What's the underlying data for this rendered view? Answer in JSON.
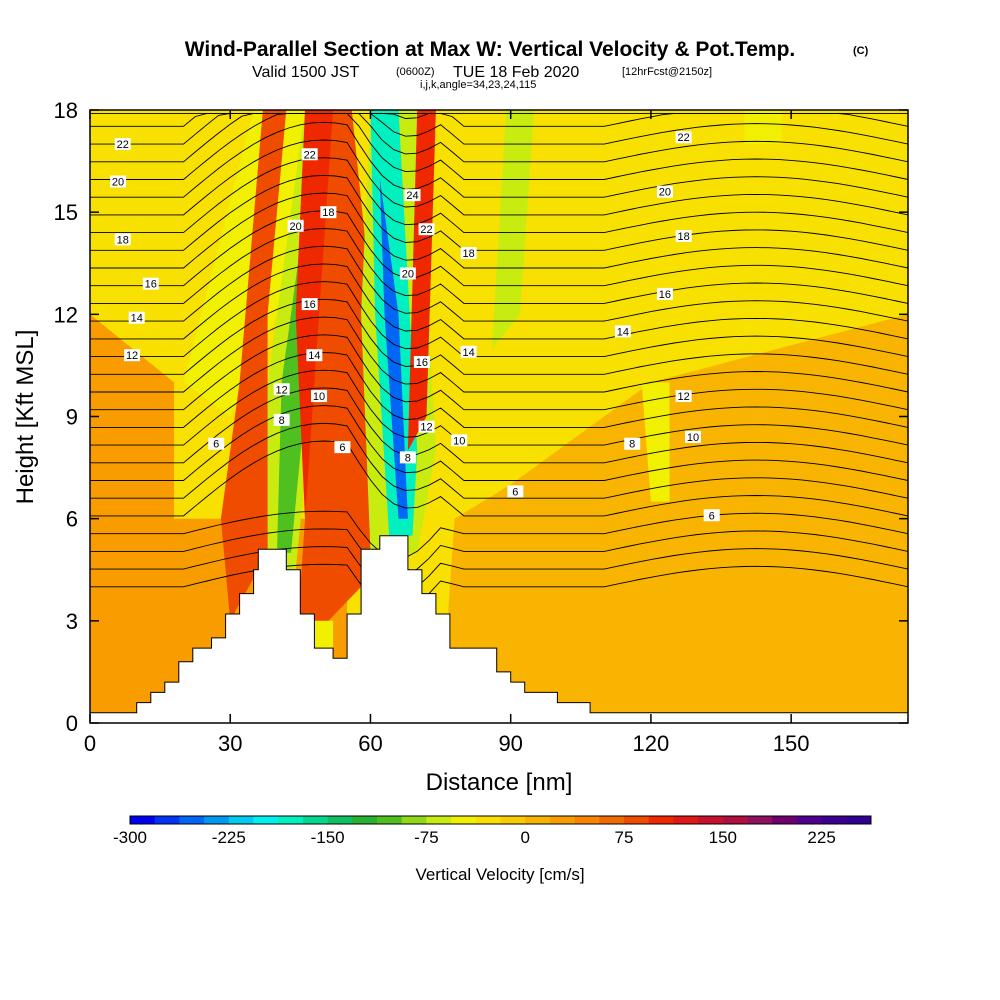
{
  "header": {
    "title_main": "Wind-Parallel Section at Max W: Vertical Velocity & Pot.Temp.",
    "title_mark": "(C)",
    "subtitle_a": "Valid 1500 JST",
    "subtitle_b": "(0600Z)",
    "subtitle_c": "TUE 18 Feb 2020",
    "subtitle_d": "[12hrFcst@2150z]",
    "params": "i,j,k,angle=34,23,24,115"
  },
  "chart_data": {
    "type": "heatmap",
    "title": "Wind-Parallel Section at Max W: Vertical Velocity & Pot.Temp.",
    "xlabel": "Distance [nm]",
    "ylabel": "Height [Kft MSL]",
    "xlim": [
      0,
      175
    ],
    "ylim": [
      0,
      18
    ],
    "x_ticks": [
      0,
      30,
      60,
      90,
      120,
      150
    ],
    "y_ticks": [
      0,
      3,
      6,
      9,
      12,
      15,
      18
    ],
    "colorbar": {
      "label": "Vertical Velocity [cm/s]",
      "ticks": [
        -300,
        -225,
        -150,
        -75,
        0,
        75,
        150,
        225
      ],
      "min": -300,
      "max": 262.5,
      "step": 18.75,
      "colors": [
        "#0000f0",
        "#0033f5",
        "#0066f5",
        "#0099f0",
        "#00ccf0",
        "#00f0f0",
        "#00f0c0",
        "#00d890",
        "#10c060",
        "#28b030",
        "#50c020",
        "#90d818",
        "#c8ec10",
        "#f0f000",
        "#f8e000",
        "#f8cc00",
        "#f8b400",
        "#f89c00",
        "#f88400",
        "#f06c00",
        "#f04c00",
        "#f02800",
        "#e01818",
        "#c81030",
        "#b01040",
        "#901060",
        "#700070",
        "#500090",
        "#3b0090",
        "#300090"
      ]
    },
    "terrain": [
      [
        0,
        0.3
      ],
      [
        10,
        0.3
      ],
      [
        10,
        0.6
      ],
      [
        13,
        0.6
      ],
      [
        13,
        0.9
      ],
      [
        16,
        0.9
      ],
      [
        16,
        1.2
      ],
      [
        19,
        1.2
      ],
      [
        19,
        1.8
      ],
      [
        22,
        1.8
      ],
      [
        22,
        2.2
      ],
      [
        26,
        2.2
      ],
      [
        26,
        2.5
      ],
      [
        29,
        2.5
      ],
      [
        29,
        3.2
      ],
      [
        32,
        3.2
      ],
      [
        32,
        3.8
      ],
      [
        35,
        3.8
      ],
      [
        35,
        4.5
      ],
      [
        36,
        4.5
      ],
      [
        36,
        5.1
      ],
      [
        42,
        5.1
      ],
      [
        42,
        4.5
      ],
      [
        45,
        4.5
      ],
      [
        45,
        3.2
      ],
      [
        48,
        3.2
      ],
      [
        48,
        2.2
      ],
      [
        52,
        2.2
      ],
      [
        52,
        1.9
      ],
      [
        55,
        1.9
      ],
      [
        55,
        3.2
      ],
      [
        58,
        3.2
      ],
      [
        58,
        5.1
      ],
      [
        62,
        5.1
      ],
      [
        62,
        5.5
      ],
      [
        68,
        5.5
      ],
      [
        68,
        4.5
      ],
      [
        71,
        4.5
      ],
      [
        71,
        3.8
      ],
      [
        74,
        3.8
      ],
      [
        74,
        3.2
      ],
      [
        77,
        3.2
      ],
      [
        77,
        2.2
      ],
      [
        87,
        2.2
      ],
      [
        87,
        1.5
      ],
      [
        90,
        1.5
      ],
      [
        90,
        1.2
      ],
      [
        93,
        1.2
      ],
      [
        93,
        0.9
      ],
      [
        100,
        0.9
      ],
      [
        100,
        0.6
      ],
      [
        107,
        0.6
      ],
      [
        107,
        0.3
      ],
      [
        175,
        0.3
      ]
    ],
    "isotherms": [
      {
        "theta": "6",
        "label_at": [
          [
            27,
            8.2
          ],
          [
            54,
            8.1
          ],
          [
            91,
            6.8
          ],
          [
            133,
            6.1
          ]
        ]
      },
      {
        "theta": "8",
        "label_at": [
          [
            41,
            8.9
          ],
          [
            68,
            7.8
          ],
          [
            116,
            8.2
          ]
        ]
      },
      {
        "theta": "10",
        "label_at": [
          [
            49,
            9.6
          ],
          [
            79,
            8.3
          ],
          [
            129,
            8.4
          ]
        ]
      },
      {
        "theta": "12",
        "label_at": [
          [
            9,
            10.8
          ],
          [
            41,
            9.8
          ],
          [
            72,
            8.7
          ],
          [
            127,
            9.6
          ]
        ]
      },
      {
        "theta": "14",
        "label_at": [
          [
            10,
            11.9
          ],
          [
            48,
            10.8
          ],
          [
            81,
            10.9
          ],
          [
            114,
            11.5
          ]
        ]
      },
      {
        "theta": "16",
        "label_at": [
          [
            13,
            12.9
          ],
          [
            47,
            12.3
          ],
          [
            71,
            10.6
          ],
          [
            123,
            12.6
          ]
        ]
      },
      {
        "theta": "18",
        "label_at": [
          [
            7,
            14.2
          ],
          [
            51,
            15.0
          ],
          [
            81,
            13.8
          ],
          [
            127,
            14.3
          ]
        ]
      },
      {
        "theta": "20",
        "label_at": [
          [
            6,
            15.9
          ],
          [
            44,
            14.6
          ],
          [
            68,
            13.2
          ],
          [
            123,
            15.6
          ]
        ]
      },
      {
        "theta": "22",
        "label_at": [
          [
            7,
            17.0
          ],
          [
            47,
            16.7
          ],
          [
            72,
            14.5
          ],
          [
            127,
            17.2
          ]
        ]
      },
      {
        "theta": "24",
        "label_at": [
          [
            69,
            15.5
          ]
        ]
      }
    ],
    "updraft_cores": [
      {
        "x0": 42,
        "x1": 50,
        "y0": 3,
        "y1": 18,
        "velocity": 150
      },
      {
        "x0": 71,
        "x1": 73,
        "y0": 7,
        "y1": 18,
        "velocity": 175
      }
    ],
    "downdraft_cores": [
      {
        "x0": 67,
        "x1": 58,
        "y0": 5.5,
        "y1": 18,
        "velocity": -300
      },
      {
        "x0": 43,
        "x1": 37,
        "y0": 4.5,
        "y1": 18,
        "velocity": -150
      }
    ]
  }
}
